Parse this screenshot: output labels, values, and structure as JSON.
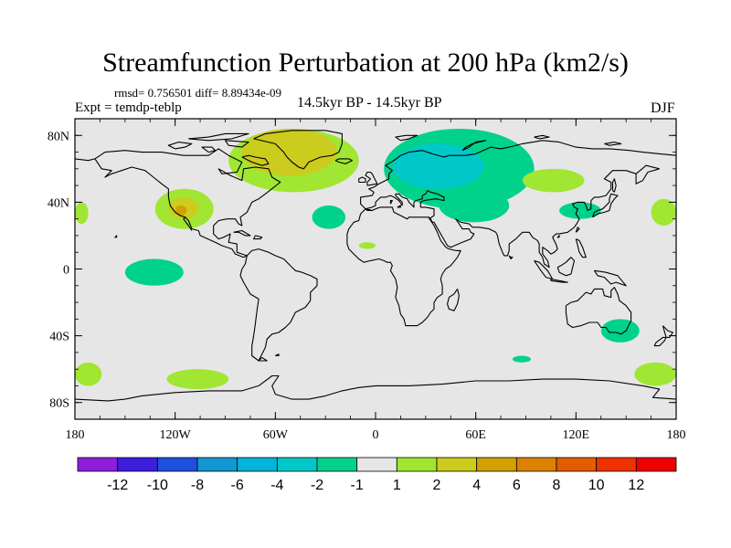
{
  "title": "Streamfunction Perturbation at 200 hPa (km2/s)",
  "rmsd_text": "rmsd= 0.756501 diff= 8.89434e-09",
  "expt_text": "Expt = temdp-teblp",
  "period_text": "14.5kyr BP - 14.5kyr BP",
  "season_text": "DJF",
  "colors": {
    "background": "#e6e6e6",
    "plus1": "#a0e632",
    "plus2": "#cccc1e",
    "plus4": "#d2a000",
    "minus1": "#00d28c",
    "minus2": "#00c8c8"
  },
  "chart_data": {
    "type": "filled-contour-map",
    "variable": "Streamfunction Perturbation",
    "level": "200 hPa",
    "units": "km2/s",
    "projection": "cylindrical-equidistant",
    "lon_range": [
      -180,
      180
    ],
    "lat_range": [
      -90,
      90
    ],
    "xticks": [
      {
        "value": -180,
        "label": "180"
      },
      {
        "value": -120,
        "label": "120W"
      },
      {
        "value": -60,
        "label": "60W"
      },
      {
        "value": 0,
        "label": "0"
      },
      {
        "value": 60,
        "label": "60E"
      },
      {
        "value": 120,
        "label": "120E"
      },
      {
        "value": 180,
        "label": "180"
      }
    ],
    "yticks": [
      {
        "value": 80,
        "label": "80N"
      },
      {
        "value": 40,
        "label": "40N"
      },
      {
        "value": 0,
        "label": "0"
      },
      {
        "value": -40,
        "label": "40S"
      },
      {
        "value": -80,
        "label": "80S"
      }
    ],
    "colorbar": {
      "colors": [
        "#8c1edc",
        "#3c1edc",
        "#1e50dc",
        "#1496d2",
        "#00b4dc",
        "#00c8c8",
        "#00d28c",
        "#e6e6e6",
        "#a0e632",
        "#cccc1e",
        "#d2a000",
        "#dc8200",
        "#e65a00",
        "#f03200",
        "#f00000"
      ],
      "labels": [
        "-12",
        "-10",
        "-8",
        "-6",
        "-4",
        "-2",
        "-1",
        "1",
        "2",
        "4",
        "6",
        "8",
        "10",
        "12"
      ]
    },
    "regions": [
      {
        "name": "North Atlantic / Greenland high",
        "level": "+1",
        "lon": [
          -88,
          -10
        ],
        "lat": [
          46,
          84
        ]
      },
      {
        "name": "Greenland core",
        "level": "+2",
        "lon": [
          -80,
          -23
        ],
        "lat": [
          56,
          84
        ]
      },
      {
        "name": "Eurasia low",
        "level": "-1",
        "lon": [
          5,
          95
        ],
        "lat": [
          36,
          84
        ]
      },
      {
        "name": "Europe core",
        "level": "-2",
        "lon": [
          10,
          65
        ],
        "lat": [
          48,
          75
        ]
      },
      {
        "name": "Middle East low",
        "level": "-1",
        "lon": [
          38,
          80
        ],
        "lat": [
          28,
          48
        ]
      },
      {
        "name": "North Pacific east high",
        "level": "+1",
        "lon": [
          -132,
          -97
        ],
        "lat": [
          24,
          48
        ]
      },
      {
        "name": "North Pacific east core",
        "level": "+2",
        "lon": [
          -124,
          -106
        ],
        "lat": [
          30,
          43
        ]
      },
      {
        "name": "Mexico core",
        "level": "+4",
        "lon": [
          -120,
          -113
        ],
        "lat": [
          32,
          38
        ]
      },
      {
        "name": "Central Asia high",
        "level": "+1",
        "lon": [
          88,
          125
        ],
        "lat": [
          46,
          60
        ]
      },
      {
        "name": "China low",
        "level": "-1",
        "lon": [
          110,
          135
        ],
        "lat": [
          30,
          40
        ]
      },
      {
        "name": "Dateline high",
        "level": "+1",
        "lon": [
          -180,
          -172
        ],
        "lat": [
          27,
          40
        ]
      },
      {
        "name": "West Pacific high",
        "level": "+1",
        "lon": [
          165,
          180
        ],
        "lat": [
          26,
          42
        ]
      },
      {
        "name": "Atlantic low",
        "level": "-1",
        "lon": [
          -38,
          -18
        ],
        "lat": [
          24,
          38
        ]
      },
      {
        "name": "West Africa high",
        "level": "+1",
        "lon": [
          -10,
          0
        ],
        "lat": [
          12,
          16
        ]
      },
      {
        "name": "East Pacific tropical low",
        "level": "-1",
        "lon": [
          -150,
          -115
        ],
        "lat": [
          -10,
          6
        ]
      },
      {
        "name": "Australia low",
        "level": "-1",
        "lon": [
          135,
          158
        ],
        "lat": [
          -44,
          -30
        ]
      },
      {
        "name": "Indian Ocean low",
        "level": "-1",
        "lon": [
          82,
          93
        ],
        "lat": [
          -56,
          -52
        ]
      },
      {
        "name": "South Pacific high",
        "level": "+1",
        "lon": [
          -125,
          -88
        ],
        "lat": [
          -72,
          -60
        ]
      },
      {
        "name": "South Pacific west high",
        "level": "+1",
        "lon": [
          -180,
          -164
        ],
        "lat": [
          -70,
          -56
        ]
      },
      {
        "name": "Southern dateline high",
        "level": "+1",
        "lon": [
          155,
          180
        ],
        "lat": [
          -70,
          -56
        ]
      }
    ]
  }
}
